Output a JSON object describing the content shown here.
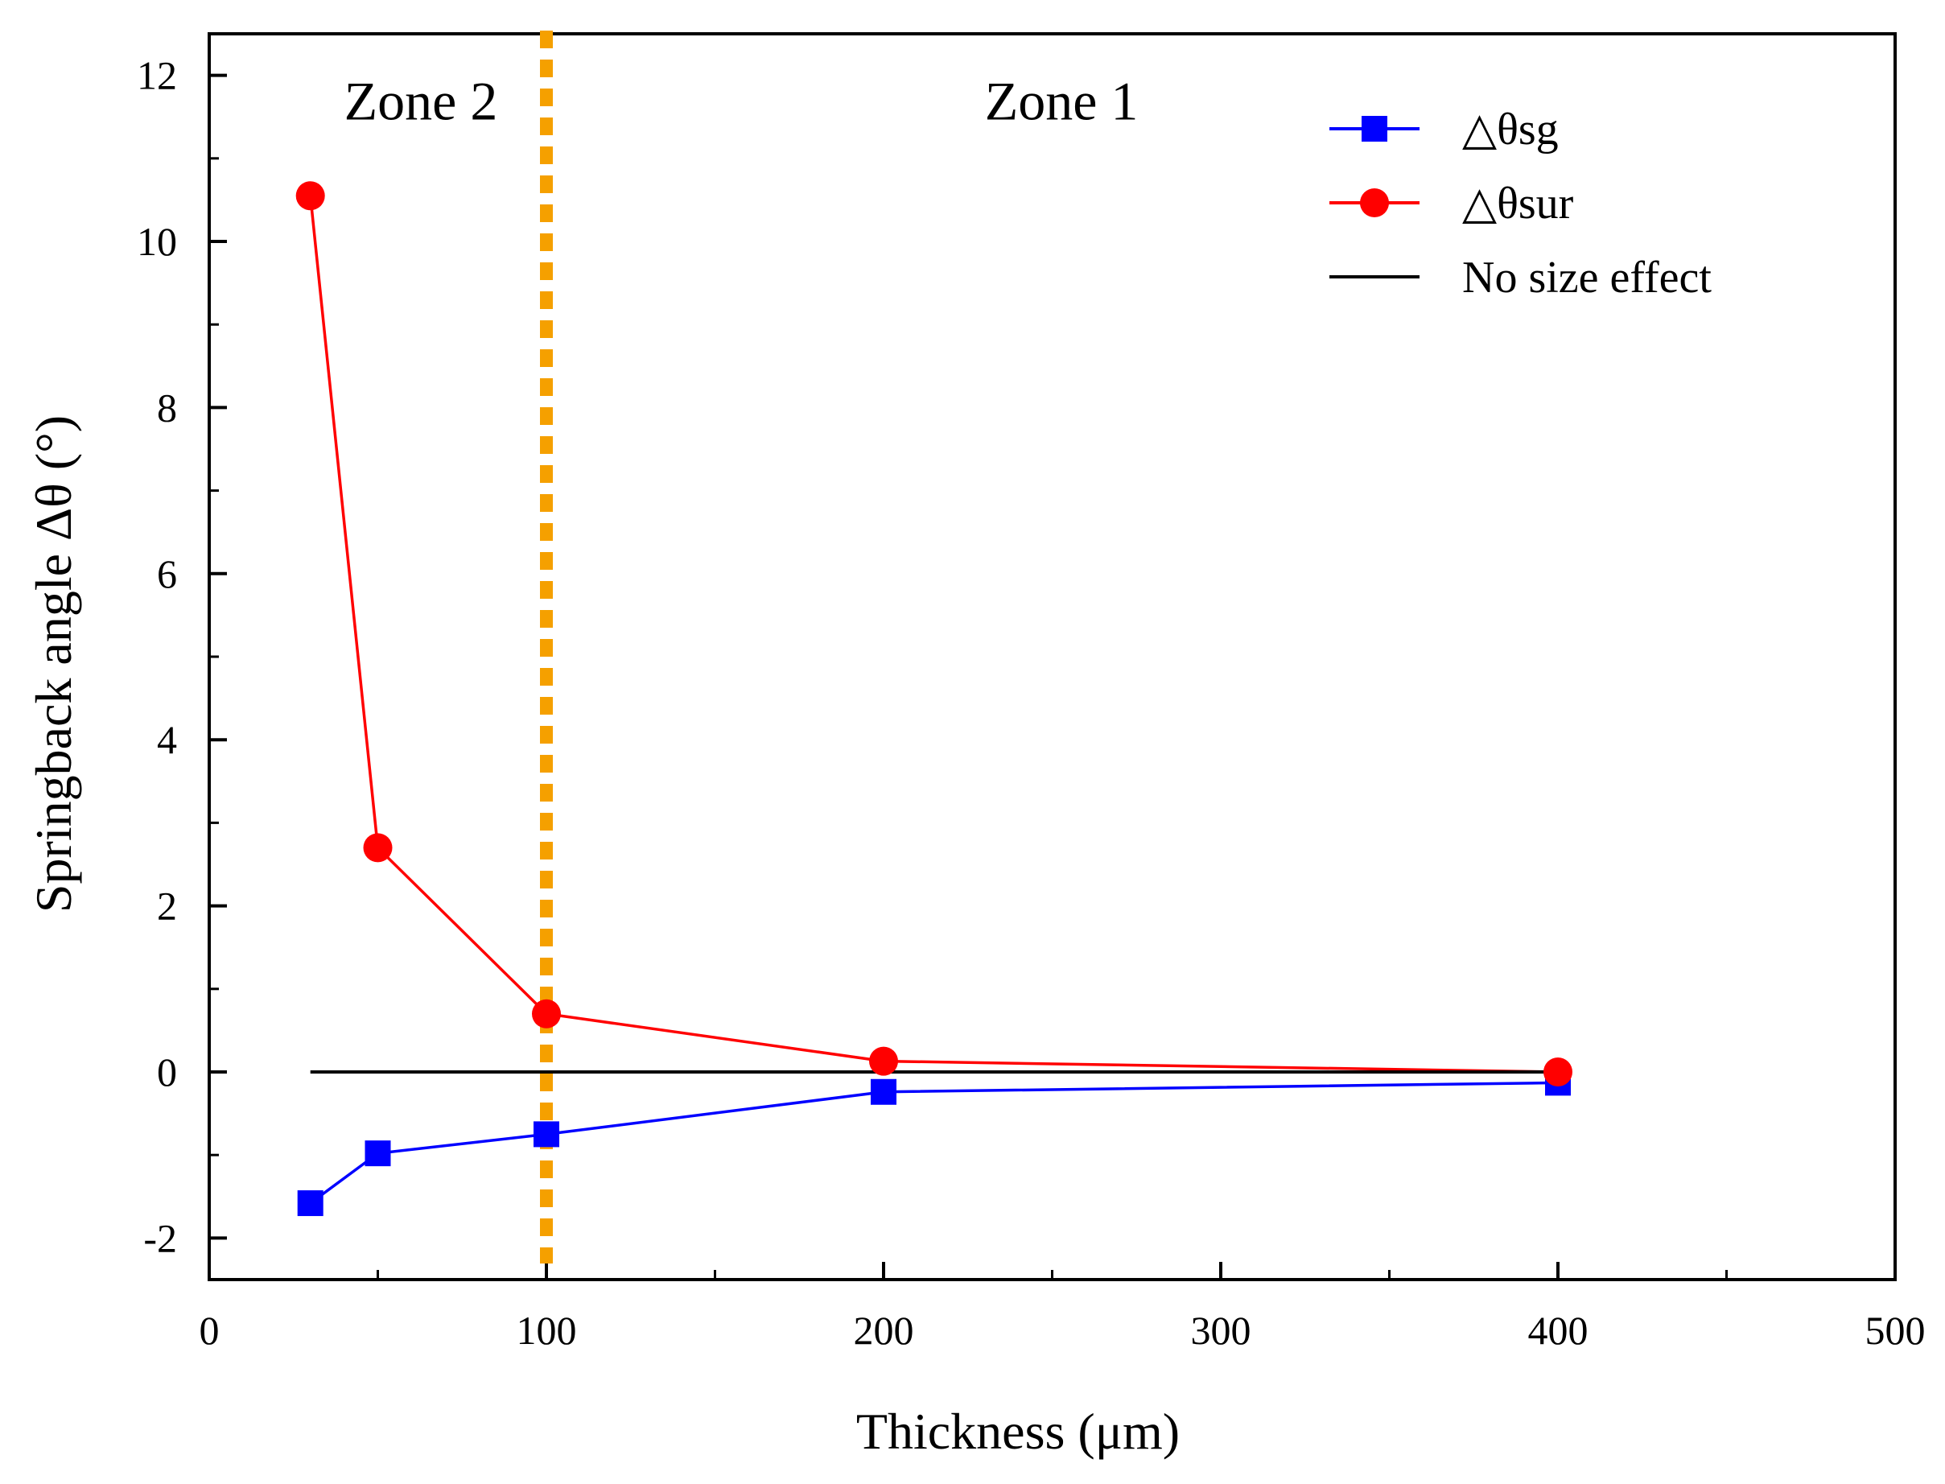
{
  "chart_data": {
    "type": "line",
    "title": "",
    "xlabel": "Thickness  (μm)",
    "ylabel": "Springback angle Δθ (°)",
    "xlim": [
      0,
      500
    ],
    "ylim": [
      -2.5,
      12.5
    ],
    "x_ticks": [
      0,
      100,
      200,
      300,
      400,
      500
    ],
    "x_tick_labels": [
      "0",
      "100",
      "200",
      "300",
      "400",
      "500"
    ],
    "x_minor_ticks": [
      50,
      150,
      250,
      350,
      450
    ],
    "y_ticks": [
      -2,
      0,
      2,
      4,
      6,
      8,
      10,
      12
    ],
    "y_tick_labels": [
      "-2",
      "0",
      "2",
      "4",
      "6",
      "8",
      "10",
      "12"
    ],
    "y_minor_ticks": [
      -1,
      1,
      3,
      5,
      7,
      9,
      11
    ],
    "grid": false,
    "legend_position": "top-right",
    "series": [
      {
        "name": "△θsg",
        "marker": "square",
        "color": "#0000ff",
        "x": [
          30,
          50,
          100,
          200,
          400
        ],
        "values": [
          -1.58,
          -0.98,
          -0.75,
          -0.24,
          -0.13
        ]
      },
      {
        "name": "△θsur",
        "marker": "circle",
        "color": "#ff0000",
        "x": [
          30,
          50,
          100,
          200,
          400
        ],
        "values": [
          10.55,
          2.7,
          0.7,
          0.13,
          0.0
        ]
      },
      {
        "name": "No size effect",
        "marker": "none",
        "color": "#000000",
        "x": [
          30,
          400
        ],
        "values": [
          0,
          0
        ]
      }
    ],
    "boundary": {
      "x": 100,
      "color": "#f5a000",
      "style": "dashed"
    },
    "annotations": [
      {
        "text": "Zone 2",
        "x": 40,
        "y": 11.7
      },
      {
        "text": "Zone 1",
        "x": 230,
        "y": 11.7
      }
    ]
  }
}
